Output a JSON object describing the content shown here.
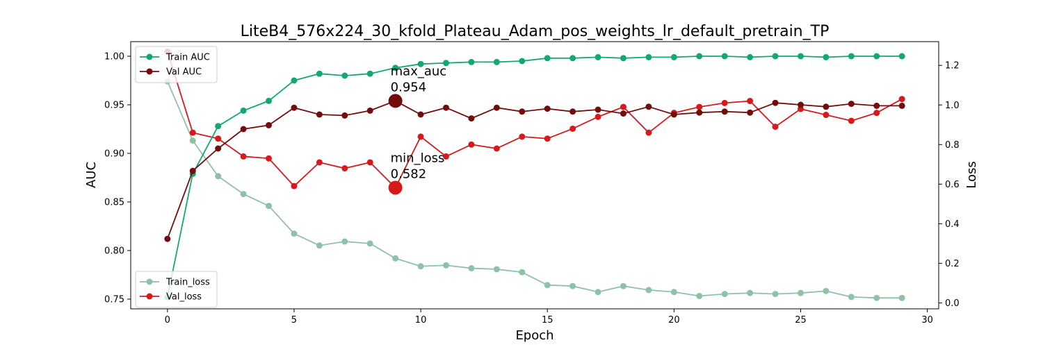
{
  "chart_data": {
    "type": "line",
    "title": "LiteB4_576x224_30_kfold_Plateau_Adam_pos_weights_lr_default_pretrain_TP",
    "xlabel": "Epoch",
    "ylabel_left": "AUC",
    "ylabel_right": "Loss",
    "xlim": [
      -1.45,
      30.45
    ],
    "ylim_left": [
      0.74,
      1.015
    ],
    "ylim_right": [
      -0.03,
      1.32
    ],
    "x_ticks": [
      0,
      5,
      10,
      15,
      20,
      25,
      30
    ],
    "y_ticks_left": [
      "0.75",
      "0.80",
      "0.85",
      "0.90",
      "0.95",
      "1.00"
    ],
    "y_ticks_right": [
      "0.0",
      "0.2",
      "0.4",
      "0.6",
      "0.8",
      "1.0",
      "1.2"
    ],
    "x": [
      0,
      1,
      2,
      3,
      4,
      5,
      6,
      7,
      8,
      9,
      10,
      11,
      12,
      13,
      14,
      15,
      16,
      17,
      18,
      19,
      20,
      21,
      22,
      23,
      24,
      25,
      26,
      27,
      28,
      29
    ],
    "series": [
      {
        "name": "Train AUC",
        "axis": "left",
        "color": "#13a872",
        "values": [
          0.752,
          0.879,
          0.928,
          0.944,
          0.954,
          0.975,
          0.982,
          0.98,
          0.982,
          0.988,
          0.992,
          0.993,
          0.994,
          0.994,
          0.995,
          0.998,
          0.998,
          0.999,
          0.998,
          0.999,
          0.999,
          1.0,
          1.0,
          0.999,
          1.0,
          1.0,
          0.999,
          1.0,
          1.0,
          1.0
        ]
      },
      {
        "name": "Val AUC",
        "axis": "left",
        "color": "#730d0d",
        "values": [
          0.812,
          0.882,
          0.905,
          0.925,
          0.929,
          0.947,
          0.94,
          0.939,
          0.944,
          0.954,
          0.94,
          0.947,
          0.936,
          0.947,
          0.943,
          0.946,
          0.943,
          0.945,
          0.941,
          0.948,
          0.94,
          0.942,
          0.943,
          0.942,
          0.952,
          0.95,
          0.948,
          0.951,
          0.949,
          0.949
        ]
      },
      {
        "name": "Train_loss",
        "axis": "right",
        "color": "#8dc2a8",
        "values": [
          1.12,
          0.82,
          0.64,
          0.55,
          0.49,
          0.35,
          0.29,
          0.31,
          0.3,
          0.225,
          0.185,
          0.19,
          0.175,
          0.17,
          0.155,
          0.09,
          0.085,
          0.055,
          0.085,
          0.065,
          0.055,
          0.035,
          0.045,
          0.05,
          0.045,
          0.05,
          0.06,
          0.03,
          0.025,
          0.025
        ]
      },
      {
        "name": "Val_loss",
        "axis": "right",
        "color": "#d7191c",
        "values": [
          1.27,
          0.86,
          0.83,
          0.74,
          0.73,
          0.59,
          0.71,
          0.68,
          0.71,
          0.582,
          0.84,
          0.74,
          0.8,
          0.78,
          0.84,
          0.83,
          0.88,
          0.94,
          0.99,
          0.86,
          0.96,
          0.99,
          1.01,
          1.02,
          0.89,
          0.98,
          0.95,
          0.92,
          0.96,
          1.03
        ]
      }
    ],
    "annotations": [
      {
        "label": "max_auc",
        "value": "0.954",
        "x": 9,
        "y": 0.954,
        "axis": "left",
        "color": "#730d0d"
      },
      {
        "label": "min_loss",
        "value": "0.582",
        "x": 9,
        "y": 0.582,
        "axis": "right",
        "color": "#d7191c"
      }
    ],
    "legends": [
      {
        "placement": "top-left",
        "items": [
          "Train AUC",
          "Val AUC"
        ]
      },
      {
        "placement": "bottom-left",
        "items": [
          "Train_loss",
          "Val_loss"
        ]
      }
    ],
    "grid": false
  }
}
